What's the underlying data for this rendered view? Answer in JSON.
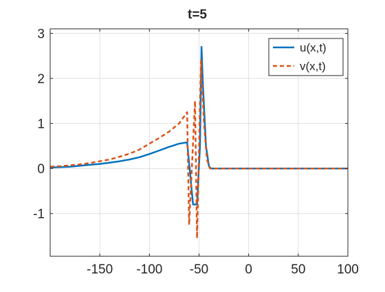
{
  "chart_data": {
    "type": "line",
    "title": "t=5",
    "xlabel": "",
    "ylabel": "",
    "xlim": [
      -200,
      100
    ],
    "ylim": [
      -1.95,
      3.1
    ],
    "xticks": [
      -150,
      -100,
      -50,
      0,
      50,
      100
    ],
    "xtick_labels": [
      "-150",
      "-100",
      "-50",
      "0",
      "50",
      "100"
    ],
    "yticks": [
      -1,
      0,
      1,
      2,
      3
    ],
    "ytick_labels": [
      "-1",
      "0",
      "1",
      "2",
      "3"
    ],
    "grid": true,
    "legend_position": "top-right",
    "series": [
      {
        "name": "u(x,t)",
        "color": "#0072BD",
        "style": "solid",
        "points": [
          [
            -200,
            0.02
          ],
          [
            -190,
            0.03
          ],
          [
            -180,
            0.04
          ],
          [
            -170,
            0.06
          ],
          [
            -160,
            0.08
          ],
          [
            -150,
            0.1
          ],
          [
            -140,
            0.13
          ],
          [
            -130,
            0.16
          ],
          [
            -120,
            0.2
          ],
          [
            -110,
            0.25
          ],
          [
            -100,
            0.32
          ],
          [
            -90,
            0.4
          ],
          [
            -80,
            0.48
          ],
          [
            -70,
            0.55
          ],
          [
            -62,
            0.58
          ],
          [
            -56,
            -0.8
          ],
          [
            -52,
            -0.8
          ],
          [
            -49,
            0.5
          ],
          [
            -47.5,
            2.7
          ],
          [
            -46,
            1.8
          ],
          [
            -43,
            0.5
          ],
          [
            -40,
            0.05
          ],
          [
            -38,
            0
          ],
          [
            100,
            0
          ]
        ]
      },
      {
        "name": "v(x,t)",
        "color": "#D95319",
        "style": "dashed",
        "points": [
          [
            -200,
            0.04
          ],
          [
            -190,
            0.05
          ],
          [
            -180,
            0.07
          ],
          [
            -170,
            0.09
          ],
          [
            -160,
            0.12
          ],
          [
            -150,
            0.16
          ],
          [
            -140,
            0.2
          ],
          [
            -130,
            0.26
          ],
          [
            -120,
            0.33
          ],
          [
            -110,
            0.42
          ],
          [
            -100,
            0.55
          ],
          [
            -90,
            0.68
          ],
          [
            -80,
            0.82
          ],
          [
            -70,
            1.0
          ],
          [
            -62,
            1.25
          ],
          [
            -60,
            -1.25
          ],
          [
            -54,
            1.5
          ],
          [
            -52,
            -1.55
          ],
          [
            -48,
            2.4
          ],
          [
            -45,
            1.0
          ],
          [
            -42,
            0.2
          ],
          [
            -39,
            0
          ],
          [
            100,
            0
          ]
        ]
      }
    ]
  }
}
